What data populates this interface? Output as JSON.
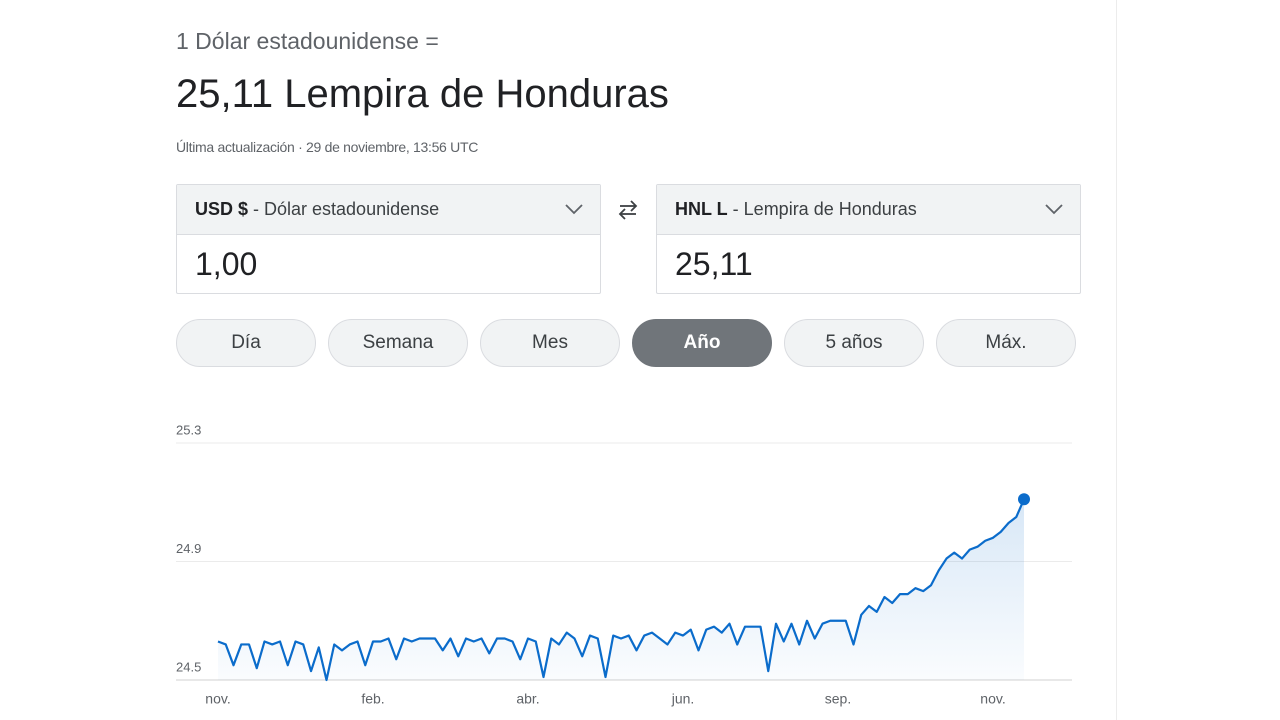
{
  "header": {
    "subtitle": "1 Dólar estadounidense =",
    "title": "25,11 Lempira de Honduras",
    "updated": "Última actualización · 29 de noviembre, 13:56 UTC"
  },
  "converter": {
    "from": {
      "code": "USD $",
      "name": "- Dólar estadounidense",
      "amount": "1,00"
    },
    "to": {
      "code": "HNL L",
      "name": "- Lempira de Honduras",
      "amount": "25,11"
    }
  },
  "ranges": [
    "Día",
    "Semana",
    "Mes",
    "Año",
    "5 años",
    "Máx."
  ],
  "selected_range": 3,
  "chart_data": {
    "type": "line",
    "color": "#0b6ccb",
    "categories": [
      "nov.",
      null,
      null,
      null,
      null,
      null,
      null,
      null,
      null,
      null,
      null,
      null,
      null,
      null,
      null,
      null,
      null,
      null,
      null,
      null,
      "feb.",
      null,
      null,
      null,
      null,
      null,
      null,
      null,
      null,
      null,
      null,
      null,
      null,
      null,
      null,
      null,
      null,
      null,
      null,
      null,
      "abr.",
      null,
      null,
      null,
      null,
      null,
      null,
      null,
      null,
      null,
      null,
      null,
      null,
      null,
      null,
      null,
      null,
      null,
      null,
      null,
      "jun.",
      null,
      null,
      null,
      null,
      null,
      null,
      null,
      null,
      null,
      null,
      null,
      null,
      null,
      null,
      null,
      null,
      null,
      null,
      null,
      "sep.",
      null,
      null,
      null,
      null,
      null,
      null,
      null,
      null,
      null,
      null,
      null,
      null,
      null,
      null,
      null,
      null,
      null,
      null,
      null,
      "nov.",
      null,
      null,
      null,
      null
    ],
    "values": [
      24.63,
      24.62,
      24.55,
      24.62,
      24.62,
      24.54,
      24.63,
      24.62,
      24.63,
      24.55,
      24.63,
      24.62,
      24.53,
      24.61,
      24.5,
      24.62,
      24.6,
      24.62,
      24.63,
      24.55,
      24.63,
      24.63,
      24.64,
      24.57,
      24.64,
      24.63,
      24.64,
      24.64,
      24.64,
      24.6,
      24.64,
      24.58,
      24.64,
      24.63,
      24.64,
      24.59,
      24.64,
      24.64,
      24.63,
      24.57,
      24.64,
      24.63,
      24.51,
      24.64,
      24.62,
      24.66,
      24.64,
      24.58,
      24.65,
      24.64,
      24.51,
      24.65,
      24.64,
      24.65,
      24.6,
      24.65,
      24.66,
      24.64,
      24.62,
      24.66,
      24.65,
      24.67,
      24.6,
      24.67,
      24.68,
      24.66,
      24.69,
      24.62,
      24.68,
      24.68,
      24.68,
      24.53,
      24.69,
      24.63,
      24.69,
      24.62,
      24.7,
      24.64,
      24.69,
      24.7,
      24.7,
      24.7,
      24.62,
      24.72,
      24.75,
      24.73,
      24.78,
      24.76,
      24.79,
      24.79,
      24.81,
      24.8,
      24.82,
      24.87,
      24.91,
      24.93,
      24.91,
      24.94,
      24.95,
      24.97,
      24.98,
      25.0,
      25.03,
      25.05,
      25.11
    ],
    "ylim": [
      24.5,
      25.3
    ],
    "yticks": [
      24.5,
      24.9,
      25.3
    ],
    "grid": true
  }
}
